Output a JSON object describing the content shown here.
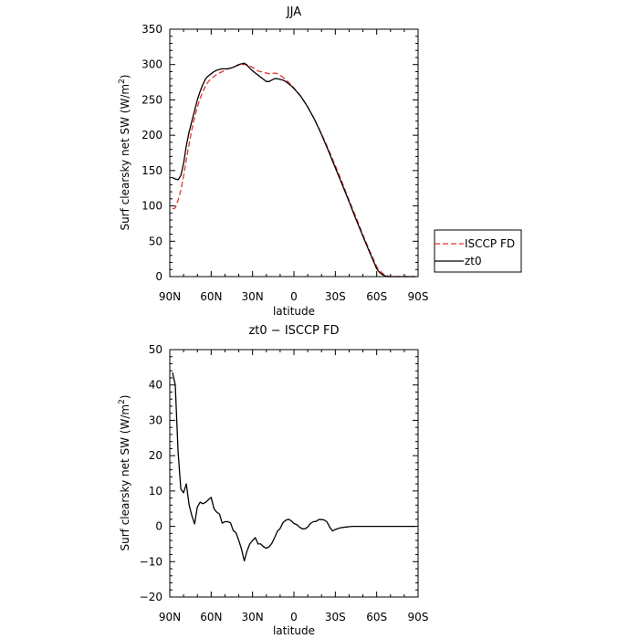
{
  "chart_data": [
    {
      "type": "line",
      "title": "JJA",
      "xlabel": "latitude",
      "ylabel": "Surf clearsky net SW (W/m²)",
      "ylabel_main": "Surf clearsky net SW (W/m",
      "ylabel_sup": "2",
      "ylabel_end": ")",
      "xlim": [
        90,
        -90
      ],
      "ylim": [
        0,
        350
      ],
      "x_ticks": [
        90,
        60,
        30,
        0,
        -30,
        -60,
        -90
      ],
      "x_tick_labels": [
        "90N",
        "60N",
        "30N",
        "0",
        "30S",
        "60S",
        "90S"
      ],
      "y_ticks": [
        0,
        50,
        100,
        150,
        200,
        250,
        300,
        350
      ],
      "y_tick_labels": [
        "0",
        "50",
        "100",
        "150",
        "200",
        "250",
        "300",
        "350"
      ],
      "legend": "outside-right",
      "series": [
        {
          "name": "ISCCP FD",
          "color": "#e8322b",
          "dash": "6,3",
          "x": [
            88,
            86,
            84,
            82,
            80,
            78,
            76,
            74,
            72,
            70,
            68,
            66,
            64,
            62,
            60,
            58,
            56,
            54,
            52,
            50,
            48,
            46,
            44,
            42,
            40,
            38,
            36,
            34,
            32,
            30,
            28,
            26,
            24,
            22,
            20,
            18,
            16,
            14,
            12,
            10,
            8,
            6,
            4,
            2,
            0,
            -5,
            -10,
            -15,
            -20,
            -25,
            -30,
            -35,
            -40,
            -45,
            -50,
            -55,
            -60,
            -62,
            -64,
            -66,
            -68,
            -70,
            -72,
            -74,
            -76,
            -78,
            -80,
            -82,
            -85,
            -88
          ],
          "y": [
            96,
            97,
            108,
            122,
            142,
            165,
            188,
            208,
            225,
            240,
            252,
            262,
            270,
            276,
            280,
            283,
            286,
            288,
            290,
            292,
            294,
            295,
            296,
            298,
            299,
            300,
            300,
            300,
            298,
            296,
            293,
            291,
            290,
            289,
            288,
            287,
            287,
            288,
            287,
            285,
            282,
            279,
            275,
            271,
            267,
            255,
            240,
            222,
            202,
            180,
            157,
            133,
            108,
            84,
            59,
            36,
            14,
            9,
            5,
            2,
            1,
            0,
            0,
            0,
            0,
            0,
            0,
            0,
            0,
            0
          ]
        },
        {
          "name": "zt0",
          "color": "#000000",
          "dash": "",
          "x": [
            88,
            86,
            84,
            82,
            80,
            78,
            76,
            74,
            72,
            70,
            68,
            66,
            64,
            62,
            60,
            58,
            56,
            54,
            52,
            50,
            48,
            46,
            44,
            42,
            40,
            38,
            36,
            34,
            32,
            30,
            28,
            26,
            24,
            22,
            20,
            18,
            16,
            14,
            12,
            10,
            8,
            6,
            4,
            2,
            0,
            -5,
            -10,
            -15,
            -20,
            -25,
            -30,
            -35,
            -40,
            -45,
            -50,
            -55,
            -60,
            -62,
            -64,
            -66,
            -68,
            -70,
            -72,
            -74,
            -76,
            -78,
            -80,
            -82,
            -85,
            -88
          ],
          "y": [
            140,
            138,
            137,
            143,
            160,
            185,
            205,
            220,
            235,
            250,
            262,
            272,
            280,
            284,
            287,
            290,
            292,
            293,
            294,
            294,
            294,
            295,
            296,
            298,
            300,
            301,
            302,
            299,
            295,
            291,
            288,
            285,
            282,
            279,
            276,
            276,
            278,
            280,
            280,
            279,
            278,
            276,
            273,
            270,
            266,
            255,
            240,
            222,
            201,
            178,
            154,
            130,
            106,
            81,
            57,
            34,
            11,
            6,
            3,
            1,
            0,
            0,
            0,
            0,
            0,
            0,
            0,
            0,
            0,
            0
          ]
        }
      ]
    },
    {
      "type": "line",
      "title": "zt0 − ISCCP FD",
      "xlabel": "latitude",
      "ylabel": "Surf clearsky net SW (W/m²)",
      "ylabel_main": "Surf clearsky net SW (W/m",
      "ylabel_sup": "2",
      "ylabel_end": ")",
      "xlim": [
        90,
        -90
      ],
      "ylim": [
        -20,
        50
      ],
      "x_ticks": [
        90,
        60,
        30,
        0,
        -30,
        -60,
        -90
      ],
      "x_tick_labels": [
        "90N",
        "60N",
        "30N",
        "0",
        "30S",
        "60S",
        "90S"
      ],
      "y_ticks": [
        -20,
        -10,
        0,
        10,
        20,
        30,
        40,
        50
      ],
      "y_tick_labels": [
        "−20",
        "−10",
        "0",
        "10",
        "20",
        "30",
        "40",
        "50"
      ],
      "series": [
        {
          "name": "zt0 − ISCCP FD",
          "color": "#000000",
          "dash": "",
          "x": [
            88,
            86,
            84,
            82,
            80,
            78,
            76,
            74,
            72,
            70,
            68,
            66,
            64,
            62,
            60,
            58,
            56,
            54,
            52,
            50,
            48,
            46,
            44,
            42,
            40,
            38,
            36,
            34,
            32,
            30,
            28,
            26,
            24,
            22,
            20,
            18,
            16,
            14,
            12,
            10,
            8,
            6,
            4,
            2,
            0,
            -2,
            -4,
            -6,
            -8,
            -10,
            -12,
            -14,
            -16,
            -18,
            -20,
            -22,
            -24,
            -26,
            -28,
            -30,
            -32,
            -34,
            -36,
            -38,
            -40,
            -42,
            -44,
            -46,
            -48,
            -50,
            -52,
            -54,
            -56,
            -58,
            -60,
            -62,
            -64,
            -66,
            -68,
            -70,
            -72,
            -75,
            -78,
            -81,
            -84,
            -88
          ],
          "y": [
            43.5,
            40,
            21,
            10.5,
            9.5,
            12,
            6,
            3,
            0.7,
            5.5,
            6.8,
            6.4,
            6.8,
            7.5,
            8.2,
            5,
            4,
            3.5,
            0.9,
            1.3,
            1.3,
            1,
            -1.2,
            -1.8,
            -4,
            -6.5,
            -9.8,
            -7,
            -5,
            -4,
            -3.2,
            -5,
            -5,
            -5.8,
            -6.2,
            -5.8,
            -4.8,
            -3.2,
            -1.4,
            -0.6,
            1,
            1.7,
            2,
            1.6,
            0.8,
            0.5,
            -0.2,
            -0.7,
            -0.7,
            -0.2,
            0.8,
            1.3,
            1.4,
            1.9,
            1.9,
            1.8,
            1.2,
            -0.3,
            -1.3,
            -0.9,
            -0.6,
            -0.4,
            -0.3,
            -0.2,
            -0.1,
            0,
            0,
            0,
            0,
            0,
            0,
            0,
            0,
            0,
            0,
            0,
            0,
            0,
            0,
            0,
            0,
            0,
            0,
            0,
            0,
            0
          ]
        }
      ]
    }
  ]
}
